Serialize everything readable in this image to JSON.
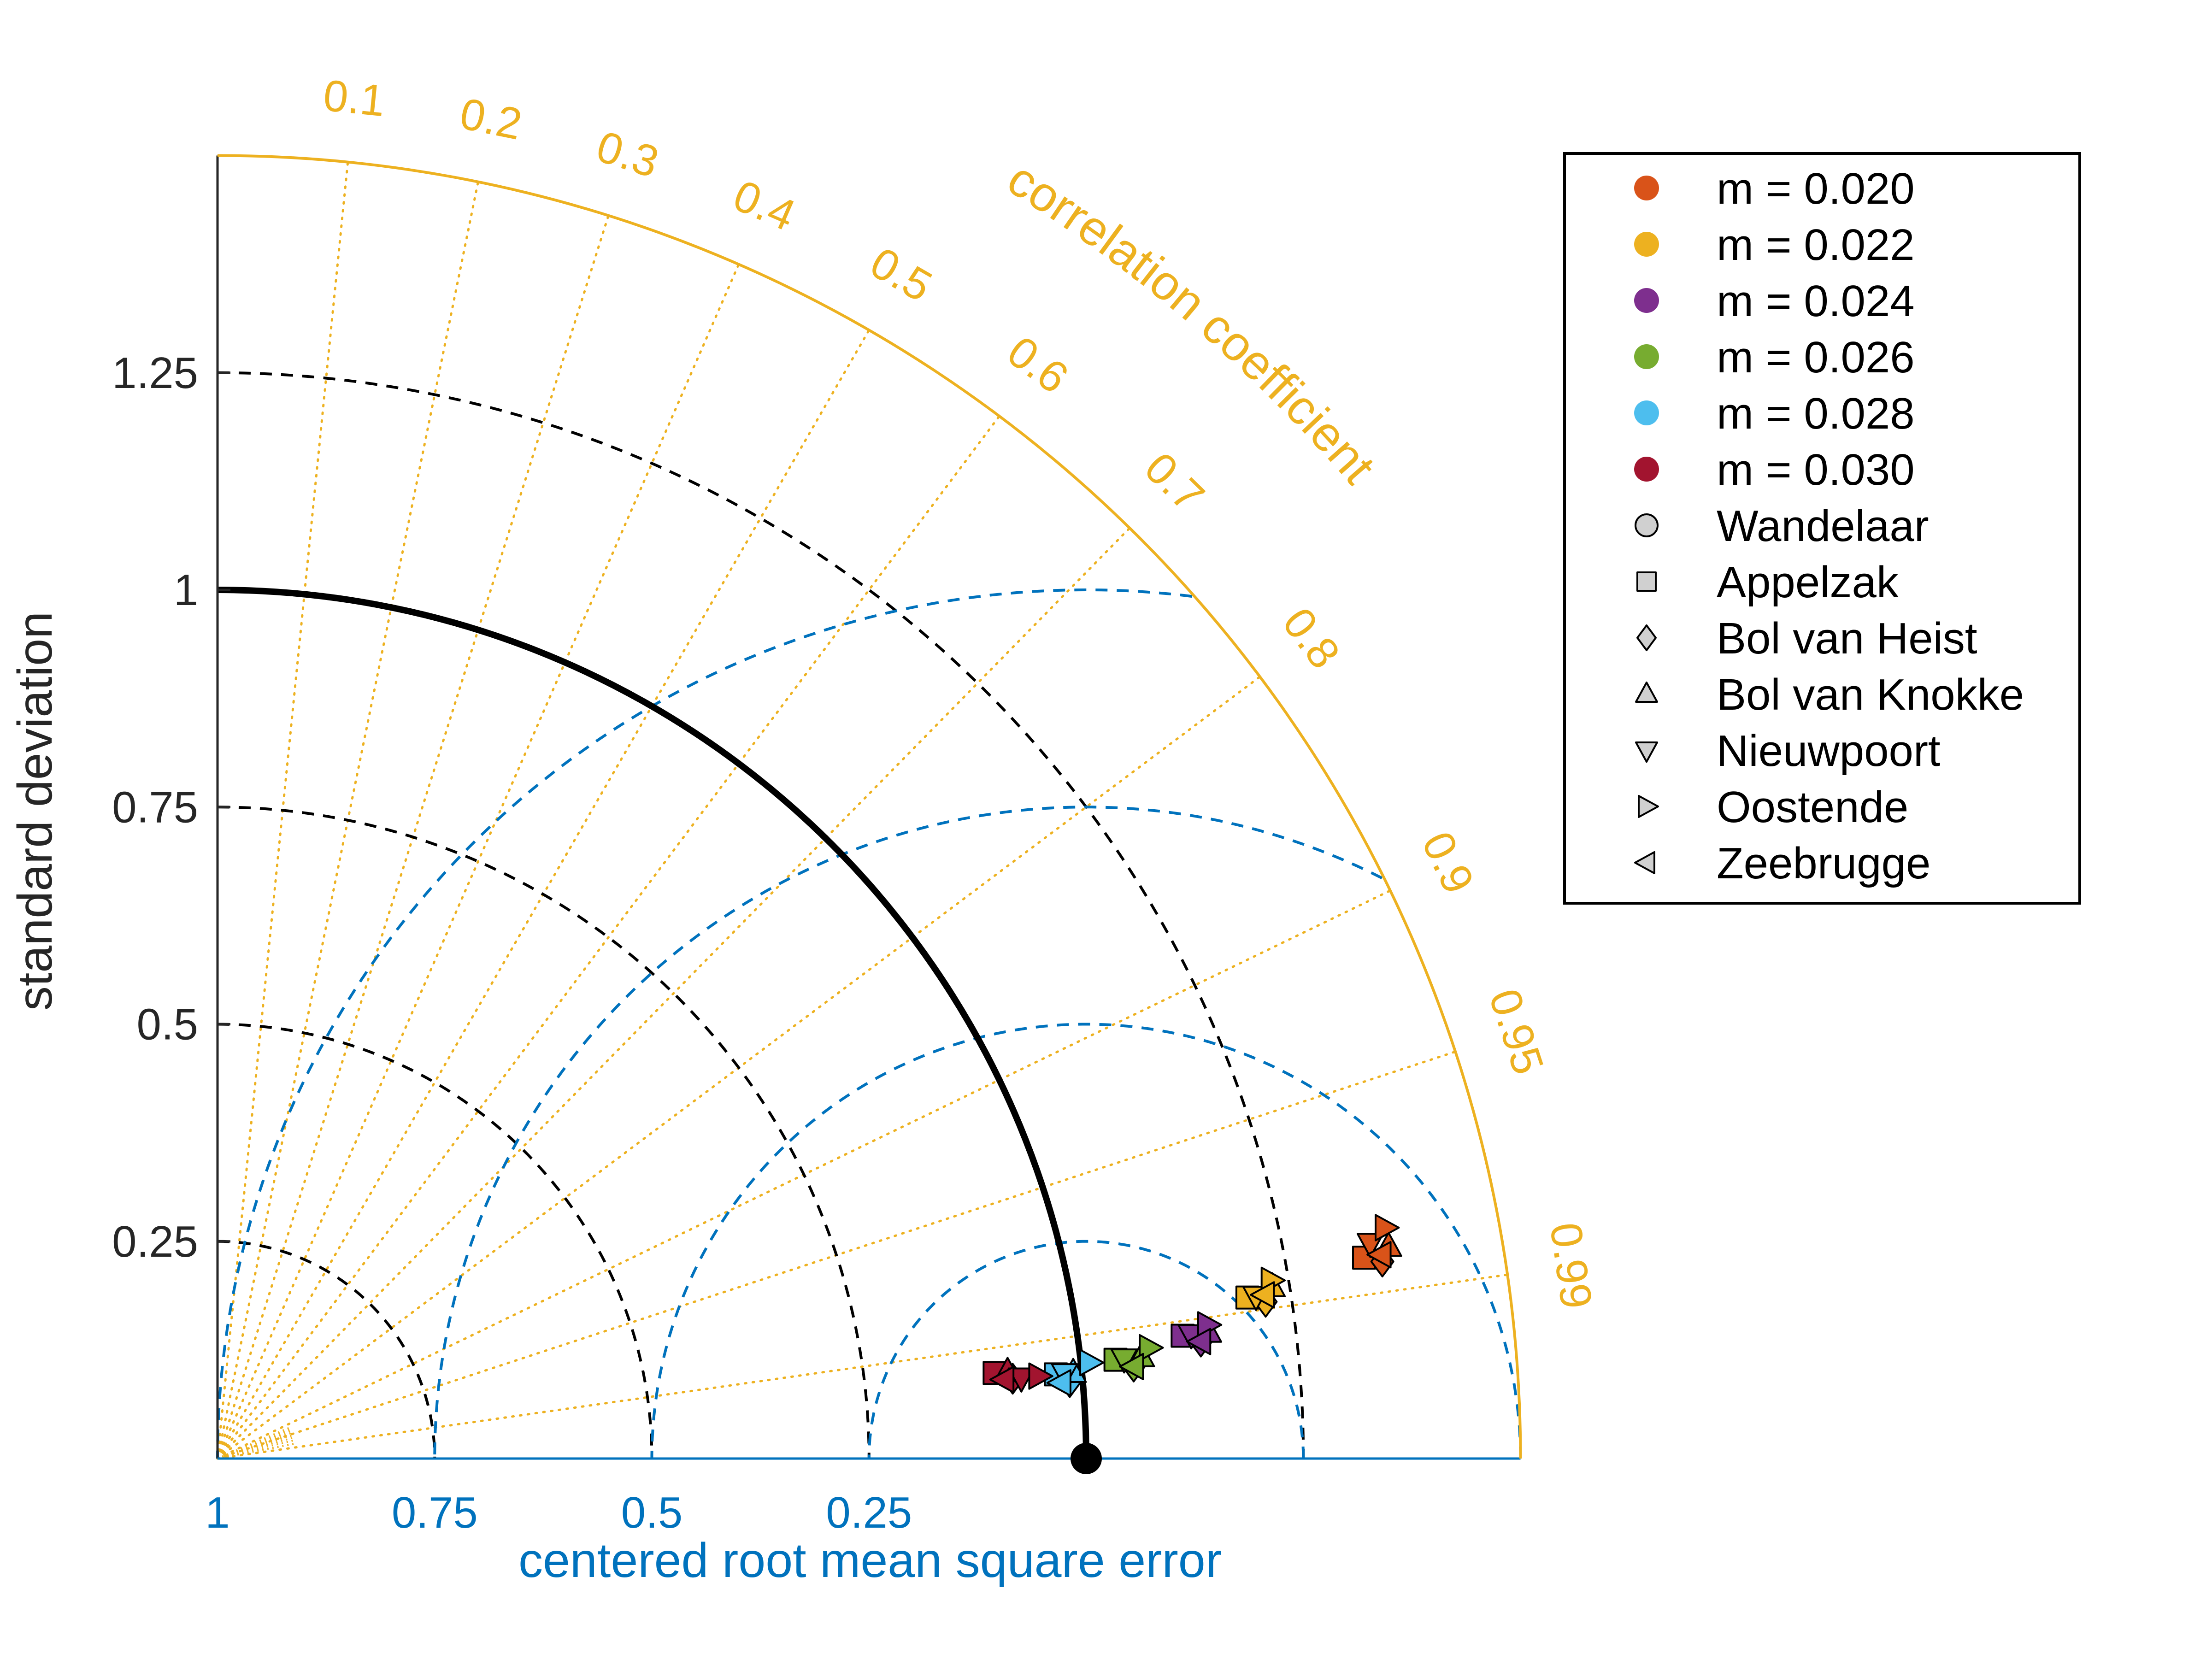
{
  "chart_data": {
    "type": "scatter",
    "subtype": "taylor-diagram",
    "title": "",
    "ylabel": "standard deviation",
    "xlabel": "centered root mean square error",
    "correlation_label": "correlation coefficient",
    "std_ticks": [
      {
        "value": 0.25,
        "label": "0.25"
      },
      {
        "value": 0.5,
        "label": "0.5"
      },
      {
        "value": 0.75,
        "label": "0.75"
      },
      {
        "value": 1,
        "label": "1"
      },
      {
        "value": 1.25,
        "label": "1.25"
      }
    ],
    "std_max": 1.5,
    "reference": {
      "std": 1,
      "corr": 1
    },
    "rmse_ticks": [
      {
        "value": 0.25,
        "label": "0.25"
      },
      {
        "value": 0.5,
        "label": "0.5"
      },
      {
        "value": 0.75,
        "label": "0.75"
      },
      {
        "value": 1,
        "label": "1"
      }
    ],
    "rmse_unlabeled": [
      0.5
    ],
    "correlation_ticks": [
      {
        "value": 0.1,
        "label": "0.1"
      },
      {
        "value": 0.2,
        "label": "0.2"
      },
      {
        "value": 0.3,
        "label": "0.3"
      },
      {
        "value": 0.4,
        "label": "0.4"
      },
      {
        "value": 0.5,
        "label": "0.5"
      },
      {
        "value": 0.6,
        "label": "0.6"
      },
      {
        "value": 0.7,
        "label": "0.7"
      },
      {
        "value": 0.8,
        "label": "0.8"
      },
      {
        "value": 0.9,
        "label": "0.9"
      },
      {
        "value": 0.95,
        "label": "0.95"
      },
      {
        "value": 0.99,
        "label": "0.99"
      }
    ],
    "series": [
      {
        "name": "m = 0.020",
        "color": "#D95319",
        "points": [
          {
            "station": "Appelzak",
            "std": 1.34,
            "corr": 0.985
          },
          {
            "station": "Bol van Heist",
            "std": 1.36,
            "corr": 0.986
          },
          {
            "station": "Bol van Knokke",
            "std": 1.37,
            "corr": 0.984
          },
          {
            "station": "Nieuwpoort",
            "std": 1.35,
            "corr": 0.983
          },
          {
            "station": "Oostende",
            "std": 1.37,
            "corr": 0.981
          },
          {
            "station": "Zeebrugge",
            "std": 1.36,
            "corr": 0.985
          }
        ]
      },
      {
        "name": "m = 0.022",
        "color": "#EDB120",
        "points": [
          {
            "station": "Appelzak",
            "std": 1.2,
            "corr": 0.988
          },
          {
            "station": "Bol van Heist",
            "std": 1.22,
            "corr": 0.989
          },
          {
            "station": "Bol van Knokke",
            "std": 1.23,
            "corr": 0.987
          },
          {
            "station": "Nieuwpoort",
            "std": 1.21,
            "corr": 0.988
          },
          {
            "station": "Oostende",
            "std": 1.23,
            "corr": 0.986
          },
          {
            "station": "Zeebrugge",
            "std": 1.22,
            "corr": 0.988
          }
        ]
      },
      {
        "name": "m = 0.024",
        "color": "#7E2F8E",
        "points": [
          {
            "station": "Appelzak",
            "std": 1.12,
            "corr": 0.992
          },
          {
            "station": "Bol van Heist",
            "std": 1.14,
            "corr": 0.993
          },
          {
            "station": "Bol van Knokke",
            "std": 1.15,
            "corr": 0.992
          },
          {
            "station": "Nieuwpoort",
            "std": 1.13,
            "corr": 0.992
          },
          {
            "station": "Oostende",
            "std": 1.15,
            "corr": 0.991
          },
          {
            "station": "Zeebrugge",
            "std": 1.14,
            "corr": 0.993
          }
        ]
      },
      {
        "name": "m = 0.026",
        "color": "#77AC30",
        "points": [
          {
            "station": "Appelzak",
            "std": 1.04,
            "corr": 0.994
          },
          {
            "station": "Bol van Heist",
            "std": 1.06,
            "corr": 0.995
          },
          {
            "station": "Bol van Knokke",
            "std": 1.07,
            "corr": 0.994
          },
          {
            "station": "Nieuwpoort",
            "std": 1.05,
            "corr": 0.994
          },
          {
            "station": "Oostende",
            "std": 1.08,
            "corr": 0.993
          },
          {
            "station": "Zeebrugge",
            "std": 1.06,
            "corr": 0.995
          }
        ]
      },
      {
        "name": "m = 0.028",
        "color": "#4DBEEE",
        "points": [
          {
            "station": "Appelzak",
            "std": 0.97,
            "corr": 0.995
          },
          {
            "station": "Bol van Heist",
            "std": 0.985,
            "corr": 0.996
          },
          {
            "station": "Bol van Knokke",
            "std": 0.99,
            "corr": 0.995
          },
          {
            "station": "Nieuwpoort",
            "std": 0.98,
            "corr": 0.995
          },
          {
            "station": "Oostende",
            "std": 1.01,
            "corr": 0.994
          },
          {
            "station": "Zeebrugge",
            "std": 0.975,
            "corr": 0.996
          }
        ]
      },
      {
        "name": "m = 0.030",
        "color": "#A2142F",
        "points": [
          {
            "station": "Appelzak",
            "std": 0.9,
            "corr": 0.994
          },
          {
            "station": "Bol van Heist",
            "std": 0.92,
            "corr": 0.995
          },
          {
            "station": "Bol van Knokke",
            "std": 0.915,
            "corr": 0.994
          },
          {
            "station": "Nieuwpoort",
            "std": 0.93,
            "corr": 0.995
          },
          {
            "station": "Oostende",
            "std": 0.95,
            "corr": 0.995
          },
          {
            "station": "Zeebrugge",
            "std": 0.91,
            "corr": 0.995
          }
        ]
      }
    ],
    "legend": {
      "position": "top-right",
      "entries": [
        {
          "label": "m = 0.020",
          "marker": "circle",
          "color": "#D95319"
        },
        {
          "label": "m = 0.022",
          "marker": "circle",
          "color": "#EDB120"
        },
        {
          "label": "m = 0.024",
          "marker": "circle",
          "color": "#7E2F8E"
        },
        {
          "label": "m = 0.026",
          "marker": "circle",
          "color": "#77AC30"
        },
        {
          "label": "m = 0.028",
          "marker": "circle",
          "color": "#4DBEEE"
        },
        {
          "label": "m = 0.030",
          "marker": "circle",
          "color": "#A2142F"
        },
        {
          "label": "Wandelaar",
          "marker": "circle-open"
        },
        {
          "label": "Appelzak",
          "marker": "square"
        },
        {
          "label": "Bol van Heist",
          "marker": "diamond"
        },
        {
          "label": "Bol van Knokke",
          "marker": "triangle-up"
        },
        {
          "label": "Nieuwpoort",
          "marker": "triangle-down"
        },
        {
          "label": "Oostende",
          "marker": "triangle-right"
        },
        {
          "label": "Zeebrugge",
          "marker": "triangle-left"
        }
      ]
    },
    "station_markers": {
      "Wandelaar": "circle",
      "Appelzak": "square",
      "Bol van Heist": "diamond",
      "Bol van Knokke": "triangle-up",
      "Nieuwpoort": "triangle-down",
      "Oostende": "triangle-right",
      "Zeebrugge": "triangle-left"
    },
    "colors": {
      "correlation": "#EDB120",
      "rmse": "#0072BD",
      "std": "#000000"
    }
  }
}
